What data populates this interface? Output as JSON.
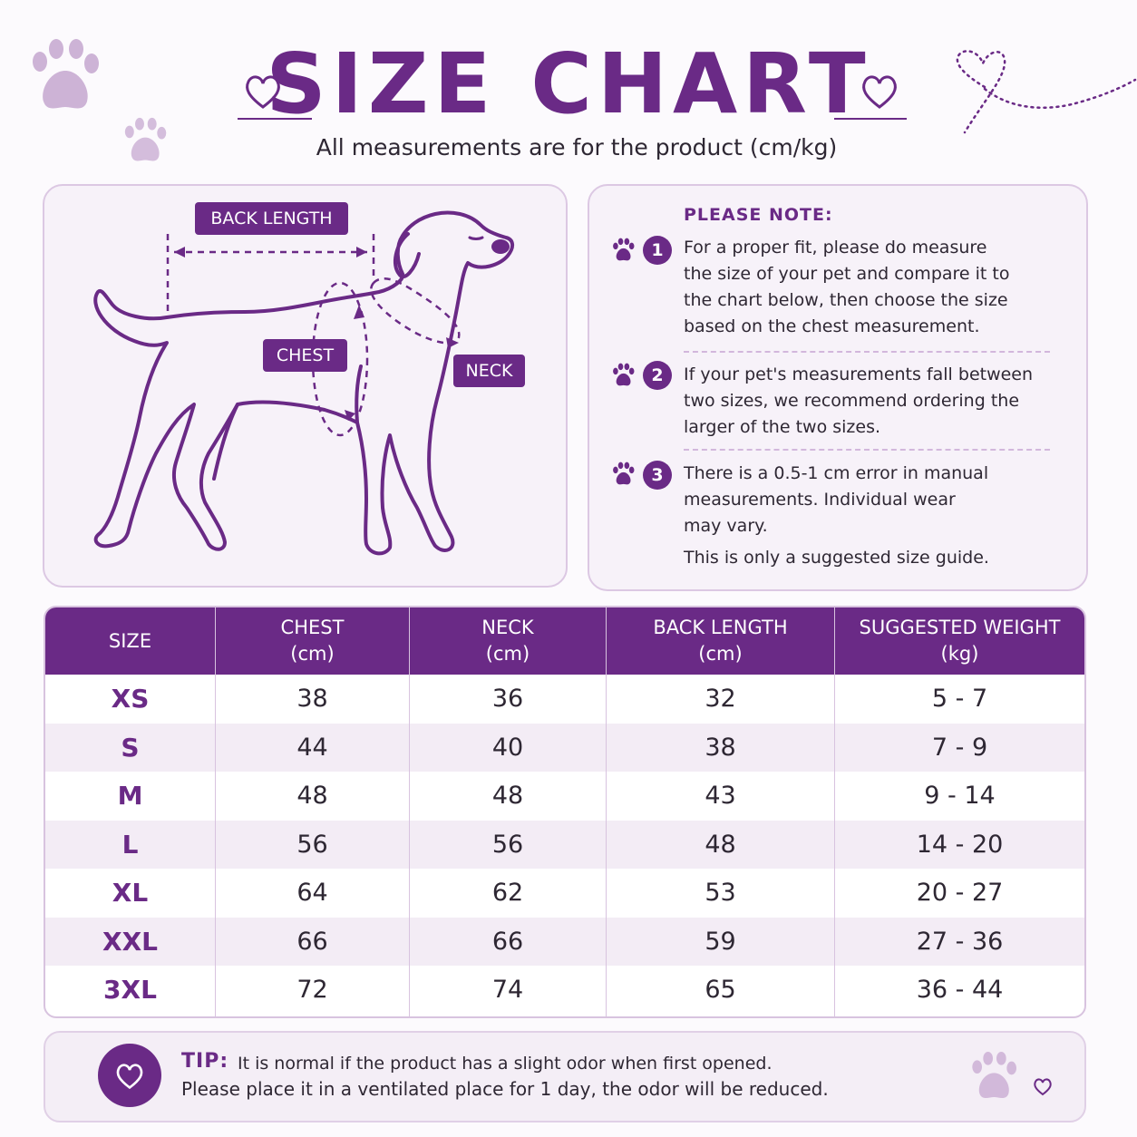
{
  "header": {
    "title": "SIZE CHART",
    "subtitle": "All measurements are for the product (cm/kg)"
  },
  "diagram": {
    "back_length_label": "BACK LENGTH",
    "chest_label": "CHEST",
    "neck_label": "NECK"
  },
  "notes": {
    "heading": "PLEASE NOTE:",
    "items": [
      {
        "number": "1",
        "lines": [
          "For a proper fit, please do measure",
          "the size of your pet and compare it to",
          "the chart below, then choose the size",
          "based on the chest measurement."
        ]
      },
      {
        "number": "2",
        "lines": [
          "If your pet's measurements fall between",
          "two sizes, we recommend ordering the",
          "larger of the two sizes."
        ]
      },
      {
        "number": "3",
        "lines": [
          "There is a 0.5-1 cm error in manual",
          "measurements. Individual wear",
          "may vary."
        ]
      }
    ],
    "footer": "This is only a suggested size guide."
  },
  "table": {
    "headers": [
      {
        "line1": "SIZE",
        "line2": ""
      },
      {
        "line1": "CHEST",
        "line2": "(cm)"
      },
      {
        "line1": "NECK",
        "line2": "(cm)"
      },
      {
        "line1": "BACK LENGTH",
        "line2": "(cm)"
      },
      {
        "line1": "SUGGESTED WEIGHT",
        "line2": "(kg)"
      }
    ],
    "rows": [
      {
        "size": "XS",
        "chest": "38",
        "neck": "36",
        "back": "32",
        "weight": "5 - 7"
      },
      {
        "size": "S",
        "chest": "44",
        "neck": "40",
        "back": "38",
        "weight": "7 - 9"
      },
      {
        "size": "M",
        "chest": "48",
        "neck": "48",
        "back": "43",
        "weight": "9 - 14"
      },
      {
        "size": "L",
        "chest": "56",
        "neck": "56",
        "back": "48",
        "weight": "14 - 20"
      },
      {
        "size": "XL",
        "chest": "64",
        "neck": "62",
        "back": "53",
        "weight": "20 - 27"
      },
      {
        "size": "XXL",
        "chest": "66",
        "neck": "66",
        "back": "59",
        "weight": "27 - 36"
      },
      {
        "size": "3XL",
        "chest": "72",
        "neck": "74",
        "back": "65",
        "weight": "36 - 44"
      }
    ]
  },
  "tip": {
    "label": "TIP:",
    "line1": "It is normal if the product has a slight odor when first opened.",
    "line2": "Please place it in a ventilated place for 1 day, the odor will be reduced."
  },
  "colors": {
    "accent": "#6a2a86",
    "panel_bg": "#f7f2f9",
    "paw_light": "#cdb3d6"
  }
}
